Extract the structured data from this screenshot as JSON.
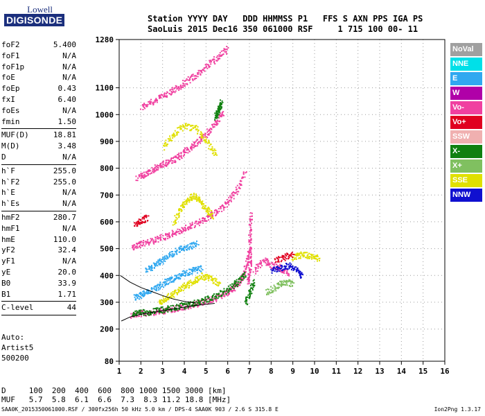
{
  "logo": {
    "top": "Lowell",
    "main": "DIGISONDE"
  },
  "header": {
    "line1": "Station YYYY DAY   DDD HHMMSS P1   FFS S AXN PPS IGA PS",
    "line2": "SaoLuis 2015 Dec16 350 061000 RSF     1 715 100 00- 11"
  },
  "params_group1": [
    {
      "label": "foF2",
      "value": "5.400"
    },
    {
      "label": "foF1",
      "value": "N/A"
    },
    {
      "label": "foF1p",
      "value": "N/A"
    },
    {
      "label": "foE",
      "value": "N/A"
    },
    {
      "label": "foEp",
      "value": "0.43"
    },
    {
      "label": "fxI",
      "value": "6.40"
    },
    {
      "label": "foEs",
      "value": "N/A"
    },
    {
      "label": "fmin",
      "value": "1.50"
    }
  ],
  "params_group2": [
    {
      "label": "MUF(D)",
      "value": "18.81"
    },
    {
      "label": "M(D)",
      "value": "3.48"
    },
    {
      "label": "D",
      "value": "N/A"
    }
  ],
  "params_group3": [
    {
      "label": "h`F",
      "value": "255.0"
    },
    {
      "label": "h`F2",
      "value": "255.0"
    },
    {
      "label": "h`E",
      "value": "N/A"
    },
    {
      "label": "h`Es",
      "value": "N/A"
    }
  ],
  "params_group4": [
    {
      "label": "hmF2",
      "value": "280.7"
    },
    {
      "label": "hmF1",
      "value": "N/A"
    },
    {
      "label": "hmE",
      "value": "110.0"
    },
    {
      "label": "yF2",
      "value": "32.4"
    },
    {
      "label": "yF1",
      "value": "N/A"
    },
    {
      "label": "yE",
      "value": "20.0"
    },
    {
      "label": "B0",
      "value": "33.9"
    },
    {
      "label": "B1",
      "value": "1.71"
    }
  ],
  "params_group5": [
    {
      "label": "C-level",
      "value": "44"
    }
  ],
  "auto": {
    "line1": "Auto:",
    "line2": "Artist5",
    "line3": "500200"
  },
  "legend": [
    {
      "label": "NoVal",
      "color": "#a0a0a0"
    },
    {
      "label": "NNE",
      "color": "#00e0e8"
    },
    {
      "label": "E",
      "color": "#30a8f0"
    },
    {
      "label": "W",
      "color": "#b000a8"
    },
    {
      "label": "Vo-",
      "color": "#f040a0"
    },
    {
      "label": "Vo+",
      "color": "#e00020"
    },
    {
      "label": "SSW",
      "color": "#f0b0b0"
    },
    {
      "label": "X-",
      "color": "#108010"
    },
    {
      "label": "X+",
      "color": "#80c060"
    },
    {
      "label": "SSE",
      "color": "#e0e000"
    },
    {
      "label": "NNW",
      "color": "#1010d0"
    }
  ],
  "bottom": {
    "line1": "D     100  200  400  600  800 1000 1500 3000 [km]",
    "line2": "MUF   5.7  5.8  6.1  6.6  7.3  8.3 11.2 18.8 [MHz]"
  },
  "footer": {
    "left": "SAA0K_2015350061000.RSF / 300fx256h 50 kHz 5.0 km / DPS-4 SAA0K 903 / 2.6 S 315.8 E",
    "right": "Ion2Png 1.3.17"
  },
  "chart_data": {
    "type": "scatter",
    "title": "",
    "xlabel": "",
    "ylabel": "",
    "xlim": [
      1,
      16
    ],
    "ylim": [
      80,
      1280
    ],
    "x_ticks": [
      1,
      2,
      3,
      4,
      5,
      6,
      7,
      8,
      9,
      10,
      11,
      12,
      13,
      14,
      15,
      16
    ],
    "y_ticks": [
      80,
      200,
      300,
      400,
      500,
      600,
      700,
      800,
      900,
      1000,
      1100,
      1280
    ],
    "series": [
      {
        "name": "Vo-",
        "color": "#f040a0",
        "traces": [
          {
            "x": [
              1.5,
              2,
              2.5,
              3,
              3.5,
              4,
              4.5,
              5,
              5.5,
              6,
              6.3,
              6.6,
              6.8,
              7
            ],
            "y": [
              255,
              260,
              265,
              270,
              278,
              285,
              295,
              305,
              320,
              340,
              360,
              390,
              430,
              500
            ]
          },
          {
            "x": [
              1.6,
              2,
              2.5,
              3,
              3.5,
              4,
              4.5,
              5,
              5.5,
              6,
              6.4,
              6.8
            ],
            "y": [
              508,
              518,
              530,
              545,
              560,
              575,
              595,
              615,
              640,
              675,
              720,
              790
            ]
          },
          {
            "x": [
              1.8,
              2.2,
              2.6,
              3,
              3.4,
              3.8,
              4.2,
              4.6,
              5,
              5.4,
              5.8
            ],
            "y": [
              765,
              780,
              800,
              815,
              830,
              850,
              875,
              900,
              930,
              970,
              1010
            ]
          },
          {
            "x": [
              2,
              2.5,
              3,
              3.5,
              4,
              4.5,
              5,
              5.5,
              6
            ],
            "y": [
              1030,
              1050,
              1070,
              1095,
              1120,
              1150,
              1180,
              1215,
              1250
            ]
          },
          {
            "x": [
              6.9,
              7,
              7,
              7,
              7.05
            ],
            "y": [
              380,
              420,
              480,
              560,
              640
            ]
          },
          {
            "x": [
              7.2,
              7.6,
              8,
              8.4,
              8.8
            ],
            "y": [
              420,
              460,
              440,
              430,
              410
            ]
          }
        ]
      },
      {
        "name": "X-",
        "color": "#108010",
        "traces": [
          {
            "x": [
              1.6,
              2,
              2.5,
              3,
              3.5,
              4,
              4.5,
              5,
              5.5,
              6,
              6.4,
              6.8
            ],
            "y": [
              258,
              262,
              268,
              274,
              282,
              290,
              300,
              312,
              328,
              350,
              375,
              410
            ]
          },
          {
            "x": [
              6.8,
              7,
              7.2
            ],
            "y": [
              300,
              340,
              380
            ]
          },
          {
            "x": [
              5.4,
              5.5,
              5.6,
              5.7
            ],
            "y": [
              990,
              1010,
              1030,
              1050
            ]
          }
        ]
      },
      {
        "name": "E",
        "color": "#30a8f0",
        "traces": [
          {
            "x": [
              1.7,
              2,
              2.4,
              2.8,
              3.2,
              3.6,
              4,
              4.4,
              4.8
            ],
            "y": [
              320,
              330,
              345,
              360,
              380,
              395,
              410,
              420,
              430
            ]
          },
          {
            "x": [
              2.2,
              2.6,
              3,
              3.4,
              3.8,
              4.2,
              4.6
            ],
            "y": [
              420,
              440,
              460,
              480,
              500,
              510,
              520
            ]
          }
        ]
      },
      {
        "name": "SSE",
        "color": "#e0e000",
        "traces": [
          {
            "x": [
              2.8,
              3.2,
              3.6,
              4,
              4.4,
              4.8,
              5.2,
              5.6
            ],
            "y": [
              300,
              320,
              340,
              360,
              380,
              400,
              390,
              370
            ]
          },
          {
            "x": [
              3.5,
              3.8,
              4.1,
              4.4,
              4.7,
              5,
              5.3
            ],
            "y": [
              600,
              650,
              680,
              700,
              680,
              650,
              620
            ]
          },
          {
            "x": [
              3,
              3.5,
              4,
              4.5,
              5,
              5.5
            ],
            "y": [
              880,
              930,
              960,
              950,
              900,
              850
            ]
          },
          {
            "x": [
              9,
              9.4,
              9.8,
              10.2
            ],
            "y": [
              470,
              480,
              475,
              465
            ]
          }
        ]
      },
      {
        "name": "NNW",
        "color": "#1010d0",
        "traces": [
          {
            "x": [
              8,
              8.4,
              8.8,
              9.2,
              9.4
            ],
            "y": [
              420,
              430,
              440,
              420,
              400
            ]
          }
        ]
      },
      {
        "name": "Vo+",
        "color": "#e00020",
        "traces": [
          {
            "x": [
              1.7,
              2,
              2.3
            ],
            "y": [
              590,
              605,
              620
            ]
          },
          {
            "x": [
              8.2,
              8.6,
              9
            ],
            "y": [
              460,
              470,
              480
            ]
          }
        ]
      },
      {
        "name": "X+",
        "color": "#80c060",
        "traces": [
          {
            "x": [
              7.8,
              8.2,
              8.6,
              9
            ],
            "y": [
              340,
              360,
              380,
              370
            ]
          }
        ]
      }
    ],
    "fit_curves": [
      {
        "x": [
          1.1,
          1.5,
          2,
          2.5,
          3,
          3.5,
          4,
          4.5,
          5,
          5.4
        ],
        "y": [
          230,
          245,
          255,
          262,
          268,
          275,
          282,
          288,
          292,
          296
        ]
      },
      {
        "x": [
          1.05,
          1.5,
          2,
          2.5,
          3,
          3.5,
          4,
          4.5
        ],
        "y": [
          400,
          375,
          355,
          340,
          325,
          312,
          303,
          298
        ]
      }
    ]
  }
}
